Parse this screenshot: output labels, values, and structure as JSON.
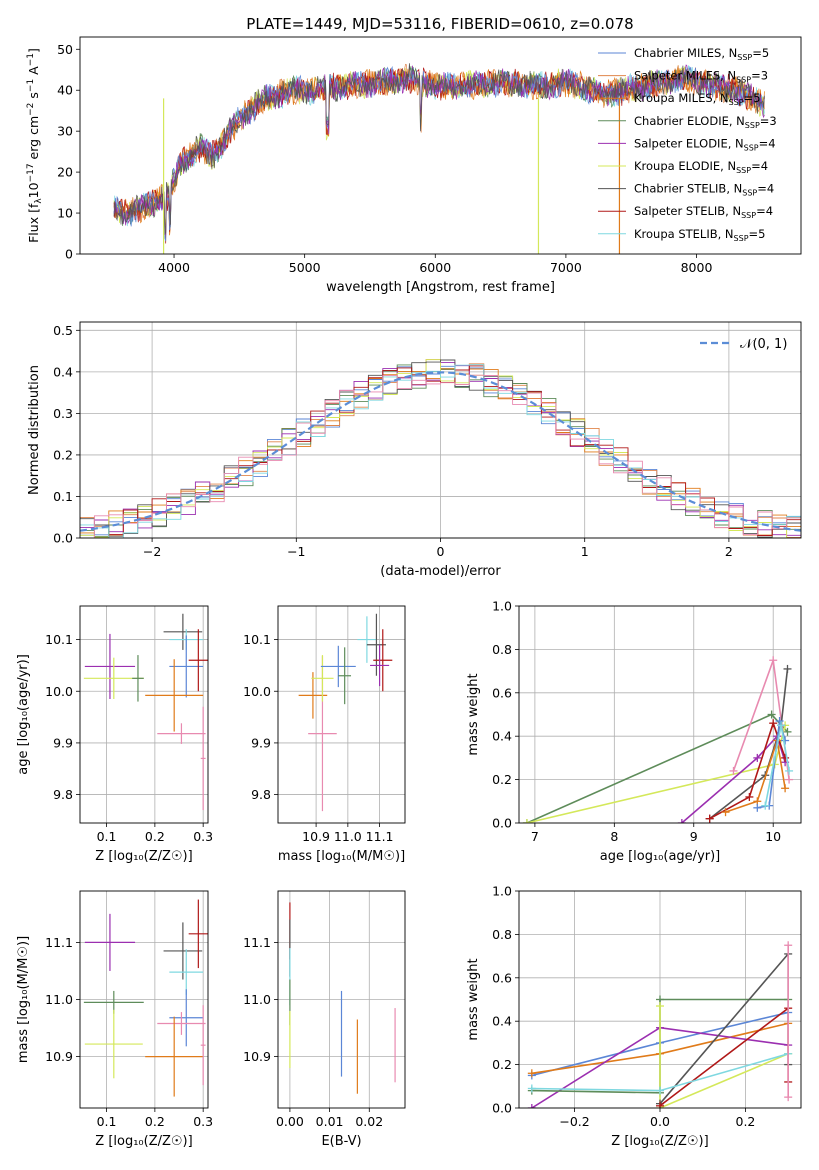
{
  "figure_title": "PLATE=1449, MJD=53116, FIBERID=0610, z=0.078",
  "colors": {
    "Chabrier MILES": "#5b86d6",
    "Salpeter MILES": "#e0864c",
    "Kroupa MILES": "#e07b1a",
    "Chabrier ELODIE": "#5e8c5a",
    "Salpeter ELODIE": "#9b2fb0",
    "Kroupa ELODIE": "#d4e85a",
    "Chabrier STELIB": "#555555",
    "Salpeter STELIB": "#b01818",
    "Kroupa STELIB": "#7fd8e0",
    "pink": "#e88ab0",
    "normal": "#5b8dd6"
  },
  "chart_data": [
    {
      "id": "spectrum",
      "type": "line",
      "title": "",
      "xlabel": "wavelength [Angstrom, rest frame]",
      "ylabel": "Flux [f_λ 10^-17 erg cm^-2 s^-1 A^-1]",
      "xlim": [
        3280,
        8800
      ],
      "ylim": [
        0,
        53
      ],
      "xticks": [
        "4000",
        "5000",
        "6000",
        "7000",
        "8000"
      ],
      "yticks": [
        "0",
        "10",
        "20",
        "30",
        "40",
        "50"
      ],
      "legend_position": "right",
      "legend": [
        {
          "model": "Chabrier MILES",
          "nssp": "5"
        },
        {
          "model": "Salpeter MILES",
          "nssp": "3"
        },
        {
          "model": "Kroupa MILES",
          "nssp": "5"
        },
        {
          "model": "Chabrier ELODIE",
          "nssp": "3"
        },
        {
          "model": "Salpeter ELODIE",
          "nssp": "4"
        },
        {
          "model": "Kroupa ELODIE",
          "nssp": "4"
        },
        {
          "model": "Chabrier STELIB",
          "nssp": "4"
        },
        {
          "model": "Salpeter STELIB",
          "nssp": "4"
        },
        {
          "model": "Kroupa STELIB",
          "nssp": "5"
        }
      ],
      "continuum": [
        [
          3540,
          11
        ],
        [
          3650,
          10
        ],
        [
          3800,
          12
        ],
        [
          3950,
          14
        ],
        [
          4050,
          22
        ],
        [
          4200,
          26
        ],
        [
          4300,
          24
        ],
        [
          4500,
          33
        ],
        [
          4700,
          38
        ],
        [
          4900,
          40
        ],
        [
          5100,
          40
        ],
        [
          5300,
          41
        ],
        [
          5600,
          42
        ],
        [
          5800,
          43
        ],
        [
          6000,
          41
        ],
        [
          6200,
          41
        ],
        [
          6500,
          42
        ],
        [
          6800,
          41
        ],
        [
          7000,
          42
        ],
        [
          7300,
          39
        ],
        [
          7600,
          41
        ],
        [
          7900,
          43
        ],
        [
          8150,
          41
        ],
        [
          8300,
          40
        ],
        [
          8500,
          37
        ]
      ]
    },
    {
      "id": "residuals",
      "type": "histogram",
      "xlabel": "(data-model)/error",
      "ylabel": "Normed distribution",
      "xlim": [
        -2.5,
        2.5
      ],
      "ylim": [
        0,
        0.52
      ],
      "xticks": [
        "−2",
        "−1",
        "0",
        "1",
        "2"
      ],
      "yticks": [
        "0.0",
        "0.1",
        "0.2",
        "0.3",
        "0.4",
        "0.5"
      ],
      "legend": "𝒩(0, 1)",
      "legend_position": "top-right",
      "bin_width": 0.1
    },
    {
      "id": "age_vs_Z",
      "type": "scatter",
      "xlabel": "Z [log₁₀(Z/Z☉)]",
      "ylabel": "age [log₁₀(age/yr)]",
      "xlim": [
        0.045,
        0.31
      ],
      "ylim": [
        9.745,
        10.165
      ],
      "xticks": [
        "0.1",
        "0.2",
        "0.3"
      ],
      "yticks": [
        "9.8",
        "9.9",
        "10.0",
        "10.1"
      ],
      "points": [
        {
          "c": "Salpeter ELODIE",
          "x": 0.107,
          "y": 10.048,
          "xerr": 0.052,
          "yerr": 0.063
        },
        {
          "c": "Kroupa ELODIE",
          "x": 0.115,
          "y": 10.025,
          "xerr": 0.062,
          "yerr": 0.04
        },
        {
          "c": "Chabrier ELODIE",
          "x": 0.165,
          "y": 10.025,
          "xerr": 0.012,
          "yerr": 0.045
        },
        {
          "c": "Chabrier STELIB",
          "x": 0.258,
          "y": 10.115,
          "xerr": 0.04,
          "yerr": 0.035
        },
        {
          "c": "Kroupa STELIB",
          "x": 0.265,
          "y": 10.1,
          "xerr": 0.035,
          "yerr": 0.02
        },
        {
          "c": "Chabrier MILES",
          "x": 0.265,
          "y": 10.048,
          "xerr": 0.035,
          "yerr": 0.06
        },
        {
          "c": "Salpeter STELIB",
          "x": 0.29,
          "y": 10.06,
          "xerr": 0.02,
          "yerr": 0.06
        },
        {
          "c": "Kroupa MILES",
          "x": 0.24,
          "y": 9.992,
          "xerr": 0.06,
          "yerr": 0.07
        },
        {
          "c": "pink",
          "x": 0.255,
          "y": 9.918,
          "xerr": 0.05,
          "yerr": 0.02
        },
        {
          "c": "pink",
          "x": 0.3,
          "y": 9.87,
          "xerr": 0.005,
          "yerr": 0.1
        }
      ]
    },
    {
      "id": "age_vs_mass",
      "type": "scatter",
      "xlabel": "mass [log₁₀(M/M☉)]",
      "ylabel": "",
      "xlim": [
        10.78,
        11.18
      ],
      "ylim": [
        9.745,
        10.165
      ],
      "xticks": [
        "10.9",
        "11.0",
        "11.1"
      ],
      "yticks": [
        "9.8",
        "9.9",
        "10.0",
        "10.1"
      ],
      "points": [
        {
          "c": "Kroupa MILES",
          "x": 10.89,
          "y": 9.992,
          "xerr": 0.045,
          "yerr": 0.045
        },
        {
          "c": "pink",
          "x": 10.92,
          "y": 9.918,
          "xerr": 0.045,
          "yerr": 0.15
        },
        {
          "c": "Kroupa ELODIE",
          "x": 10.92,
          "y": 10.025,
          "xerr": 0.035,
          "yerr": 0.045
        },
        {
          "c": "Chabrier MILES",
          "x": 10.97,
          "y": 10.048,
          "xerr": 0.055,
          "yerr": 0.04
        },
        {
          "c": "Chabrier ELODIE",
          "x": 10.99,
          "y": 10.03,
          "xerr": 0.02,
          "yerr": 0.055
        },
        {
          "c": "Kroupa STELIB",
          "x": 11.06,
          "y": 10.1,
          "xerr": 0.03,
          "yerr": 0.045
        },
        {
          "c": "Chabrier STELIB",
          "x": 11.09,
          "y": 10.09,
          "xerr": 0.03,
          "yerr": 0.06
        },
        {
          "c": "Salpeter STELIB",
          "x": 11.11,
          "y": 10.06,
          "xerr": 0.03,
          "yerr": 0.06
        },
        {
          "c": "Salpeter ELODIE",
          "x": 11.1,
          "y": 10.05,
          "xerr": 0.03,
          "yerr": 0.04
        }
      ]
    },
    {
      "id": "weight_vs_age",
      "type": "line",
      "xlabel": "age [log₁₀(age/yr)]",
      "ylabel": "mass weight",
      "xlim": [
        6.8,
        10.35
      ],
      "ylim": [
        0,
        1
      ],
      "xticks": [
        "7",
        "8",
        "9",
        "10"
      ],
      "yticks": [
        "0.0",
        "0.2",
        "0.4",
        "0.6",
        "0.8",
        "1.0"
      ],
      "series": [
        {
          "c": "Chabrier ELODIE",
          "x": [
            6.9,
            9.98,
            10.18
          ],
          "y": [
            0,
            0.5,
            0.42
          ]
        },
        {
          "c": "Kroupa ELODIE",
          "x": [
            6.9,
            10.02,
            10.15
          ],
          "y": [
            0,
            0.27,
            0.45
          ]
        },
        {
          "c": "pink",
          "x": [
            9.5,
            10.0,
            10.2
          ],
          "y": [
            0.24,
            0.75,
            0.2
          ]
        },
        {
          "c": "Salpeter ELODIE",
          "x": [
            8.85,
            9.8,
            10.05,
            10.15
          ],
          "y": [
            0,
            0.3,
            0.4,
            0.28
          ]
        },
        {
          "c": "Chabrier STELIB",
          "x": [
            9.2,
            9.9,
            10.1,
            10.18
          ],
          "y": [
            0.02,
            0.22,
            0.45,
            0.71
          ]
        },
        {
          "c": "Salpeter STELIB",
          "x": [
            9.2,
            9.7,
            10.0,
            10.15
          ],
          "y": [
            0.02,
            0.12,
            0.46,
            0.3
          ]
        },
        {
          "c": "Kroupa MILES",
          "x": [
            9.4,
            9.8,
            10.05,
            10.15
          ],
          "y": [
            0.05,
            0.1,
            0.38,
            0.16
          ]
        },
        {
          "c": "Chabrier MILES",
          "x": [
            9.8,
            9.95,
            10.08,
            10.15
          ],
          "y": [
            0.07,
            0.08,
            0.47,
            0.38
          ]
        },
        {
          "c": "Kroupa STELIB",
          "x": [
            9.9,
            10.1,
            10.2
          ],
          "y": [
            0.08,
            0.45,
            0.24
          ]
        }
      ]
    },
    {
      "id": "mass_vs_Z",
      "type": "scatter",
      "xlabel": "Z [log₁₀(Z/Z☉)]",
      "ylabel": "mass [log₁₀(M/M☉)]",
      "xlim": [
        0.045,
        0.31
      ],
      "ylim": [
        10.81,
        11.19
      ],
      "xticks": [
        "0.1",
        "0.2",
        "0.3"
      ],
      "yticks": [
        "10.9",
        "11.0",
        "11.1"
      ],
      "points": [
        {
          "c": "Salpeter ELODIE",
          "x": 0.107,
          "y": 11.1,
          "xerr": 0.052,
          "yerr": 0.05
        },
        {
          "c": "Chabrier ELODIE",
          "x": 0.115,
          "y": 10.995,
          "xerr": 0.062,
          "yerr": 0.02
        },
        {
          "c": "Kroupa ELODIE",
          "x": 0.115,
          "y": 10.922,
          "xerr": 0.06,
          "yerr": 0.06
        },
        {
          "c": "Chabrier STELIB",
          "x": 0.258,
          "y": 11.085,
          "xerr": 0.04,
          "yerr": 0.05
        },
        {
          "c": "Kroupa STELIB",
          "x": 0.265,
          "y": 11.048,
          "xerr": 0.035,
          "yerr": 0.04
        },
        {
          "c": "Salpeter STELIB",
          "x": 0.29,
          "y": 11.115,
          "xerr": 0.02,
          "yerr": 0.06
        },
        {
          "c": "Chabrier MILES",
          "x": 0.265,
          "y": 10.968,
          "xerr": 0.035,
          "yerr": 0.05
        },
        {
          "c": "pink",
          "x": 0.255,
          "y": 10.958,
          "xerr": 0.05,
          "yerr": 0.02
        },
        {
          "c": "Kroupa MILES",
          "x": 0.24,
          "y": 10.9,
          "xerr": 0.06,
          "yerr": 0.07
        },
        {
          "c": "pink",
          "x": 0.3,
          "y": 10.92,
          "xerr": 0.005,
          "yerr": 0.07
        }
      ]
    },
    {
      "id": "mass_vs_ebv",
      "type": "scatter",
      "xlabel": "E(B-V)",
      "ylabel": "",
      "xlim": [
        -0.003,
        0.029
      ],
      "ylim": [
        10.81,
        11.19
      ],
      "xticks": [
        "0.00",
        "0.01",
        "0.02"
      ],
      "yticks": [
        "10.9",
        "11.0",
        "11.1"
      ],
      "points": [
        {
          "c": "Salpeter STELIB",
          "x": 0.0,
          "y": 11.12,
          "xerr": 0,
          "yerr": 0.05
        },
        {
          "c": "Chabrier STELIB",
          "x": 0.0,
          "y": 11.09,
          "xerr": 0,
          "yerr": 0.05
        },
        {
          "c": "Kroupa STELIB",
          "x": 0.0,
          "y": 11.04,
          "xerr": 0,
          "yerr": 0.05
        },
        {
          "c": "Chabrier ELODIE",
          "x": 0.0,
          "y": 10.995,
          "xerr": 0,
          "yerr": 0.04
        },
        {
          "c": "Kroupa ELODIE",
          "x": 0.0,
          "y": 10.93,
          "xerr": 0,
          "yerr": 0.05
        },
        {
          "c": "Chabrier MILES",
          "x": 0.013,
          "y": 10.94,
          "xerr": 0,
          "yerr": 0.075
        },
        {
          "c": "Kroupa MILES",
          "x": 0.017,
          "y": 10.9,
          "xerr": 0,
          "yerr": 0.065
        },
        {
          "c": "pink",
          "x": 0.0265,
          "y": 10.92,
          "xerr": 0,
          "yerr": 0.065
        }
      ]
    },
    {
      "id": "weight_vs_Z",
      "type": "line",
      "xlabel": "Z [log₁₀(Z/Z☉)]",
      "ylabel": "mass weight",
      "xlim": [
        -0.33,
        0.33
      ],
      "ylim": [
        0,
        1
      ],
      "xticks": [
        "−0.2",
        "0.0",
        "0.2"
      ],
      "yticks": [
        "0.0",
        "0.2",
        "0.4",
        "0.6",
        "0.8",
        "1.0"
      ],
      "series": [
        {
          "c": "Chabrier MILES",
          "x": [
            -0.3,
            0.0,
            0.3
          ],
          "y": [
            0.15,
            0.3,
            0.44
          ]
        },
        {
          "c": "Kroupa MILES",
          "x": [
            -0.3,
            0.0,
            0.3
          ],
          "y": [
            0.16,
            0.25,
            0.39
          ]
        },
        {
          "c": "Salpeter ELODIE",
          "x": [
            -0.3,
            0.0,
            0.3
          ],
          "y": [
            0.0,
            0.37,
            0.29
          ]
        },
        {
          "c": "Chabrier ELODIE",
          "x": [
            -0.3,
            0.0,
            0.0,
            0.3
          ],
          "y": [
            0.08,
            0.07,
            0.5,
            0.5
          ]
        },
        {
          "c": "Kroupa ELODIE",
          "x": [
            0.0,
            0.0,
            0.3
          ],
          "y": [
            0.47,
            0.0,
            0.25
          ]
        },
        {
          "c": "Chabrier STELIB",
          "x": [
            0.0,
            0.3,
            0.3
          ],
          "y": [
            0.02,
            0.71,
            0.2
          ]
        },
        {
          "c": "Salpeter STELIB",
          "x": [
            0.0,
            0.3,
            0.3
          ],
          "y": [
            0.01,
            0.46,
            0.12
          ]
        },
        {
          "c": "Kroupa STELIB",
          "x": [
            -0.3,
            0.0,
            0.3
          ],
          "y": [
            0.09,
            0.08,
            0.25
          ]
        },
        {
          "c": "pink",
          "x": [
            0.3,
            0.3
          ],
          "y": [
            0.75,
            0.05
          ]
        }
      ]
    }
  ]
}
